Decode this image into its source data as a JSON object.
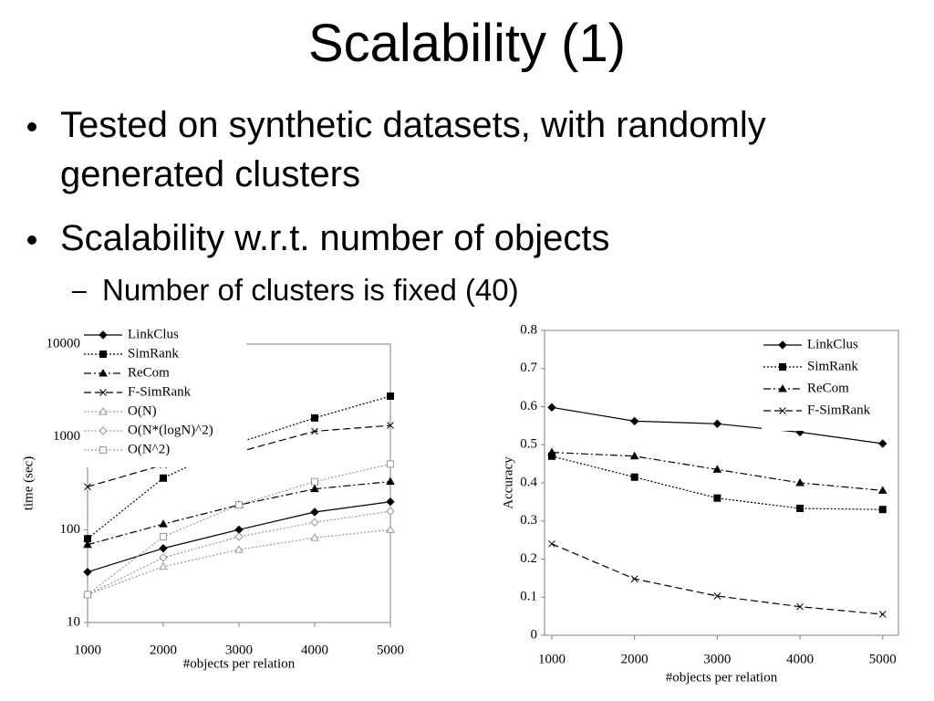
{
  "title": "Scalability (1)",
  "bullets": [
    "Tested on synthetic datasets, with randomly generated clusters",
    "Scalability w.r.t. number of objects"
  ],
  "sub_bullets": [
    "Number of clusters is fixed (40)"
  ],
  "chart_data": [
    {
      "type": "line",
      "y_label": "time (sec)",
      "x_label": "#objects per relation",
      "log_y": true,
      "legend": "upper left",
      "x": [
        1000,
        2000,
        3000,
        4000,
        5000
      ],
      "xlim": [
        1000,
        5000
      ],
      "xticks": [
        1000,
        2000,
        3000,
        4000,
        5000
      ],
      "ylim": [
        10,
        10000
      ],
      "yticks": [
        10,
        100,
        1000,
        10000
      ],
      "series": [
        {
          "name": "LinkClus",
          "color": "#000000",
          "marker": "diamond",
          "dash": "",
          "values": [
            35,
            63,
            100,
            155,
            200
          ]
        },
        {
          "name": "SimRank",
          "color": "#000000",
          "marker": "square",
          "dash": "2,2",
          "values": [
            80,
            360,
            870,
            1600,
            2750
          ]
        },
        {
          "name": "ReCom",
          "color": "#000000",
          "marker": "triangle",
          "dash": "8,3,2,3",
          "values": [
            69,
            115,
            185,
            275,
            330
          ]
        },
        {
          "name": "F-SimRank",
          "color": "#000000",
          "marker": "x",
          "dash": "8,4",
          "values": [
            290,
            500,
            690,
            1150,
            1330
          ]
        },
        {
          "name": "O(N)",
          "color": "#999999",
          "marker": "open-triangle",
          "dash": "2,2",
          "values": [
            20,
            40,
            61,
            82,
            100
          ]
        },
        {
          "name": "O(N*(logN)^2)",
          "color": "#999999",
          "marker": "open-diamond",
          "dash": "2,2",
          "values": [
            20,
            50,
            84,
            120,
            158
          ]
        },
        {
          "name": "O(N^2)",
          "color": "#999999",
          "marker": "open-square",
          "dash": "2,2",
          "values": [
            20,
            84,
            185,
            330,
            510
          ]
        }
      ]
    },
    {
      "type": "line",
      "y_label": "Accuracy",
      "x_label": "#objects per relation",
      "log_y": false,
      "legend": "upper right",
      "x": [
        1000,
        2000,
        3000,
        4000,
        5000
      ],
      "xlim": [
        912,
        5190
      ],
      "xticks": [
        1000,
        2000,
        3000,
        4000,
        5000
      ],
      "ylim": [
        0,
        0.8
      ],
      "yticks": [
        0,
        0.1,
        0.2,
        0.3,
        0.4,
        0.5,
        0.6,
        0.7,
        0.8
      ],
      "series": [
        {
          "name": "LinkClus",
          "color": "#000000",
          "marker": "diamond",
          "dash": "",
          "values": [
            0.598,
            0.562,
            0.555,
            0.533,
            0.503
          ]
        },
        {
          "name": "SimRank",
          "color": "#000000",
          "marker": "square",
          "dash": "2,2",
          "values": [
            0.47,
            0.415,
            0.36,
            0.333,
            0.33
          ]
        },
        {
          "name": "ReCom",
          "color": "#000000",
          "marker": "triangle",
          "dash": "8,3,2,3",
          "values": [
            0.48,
            0.47,
            0.435,
            0.4,
            0.38
          ]
        },
        {
          "name": "F-SimRank",
          "color": "#000000",
          "marker": "x",
          "dash": "8,4",
          "values": [
            0.24,
            0.148,
            0.103,
            0.075,
            0.055
          ]
        }
      ]
    }
  ]
}
